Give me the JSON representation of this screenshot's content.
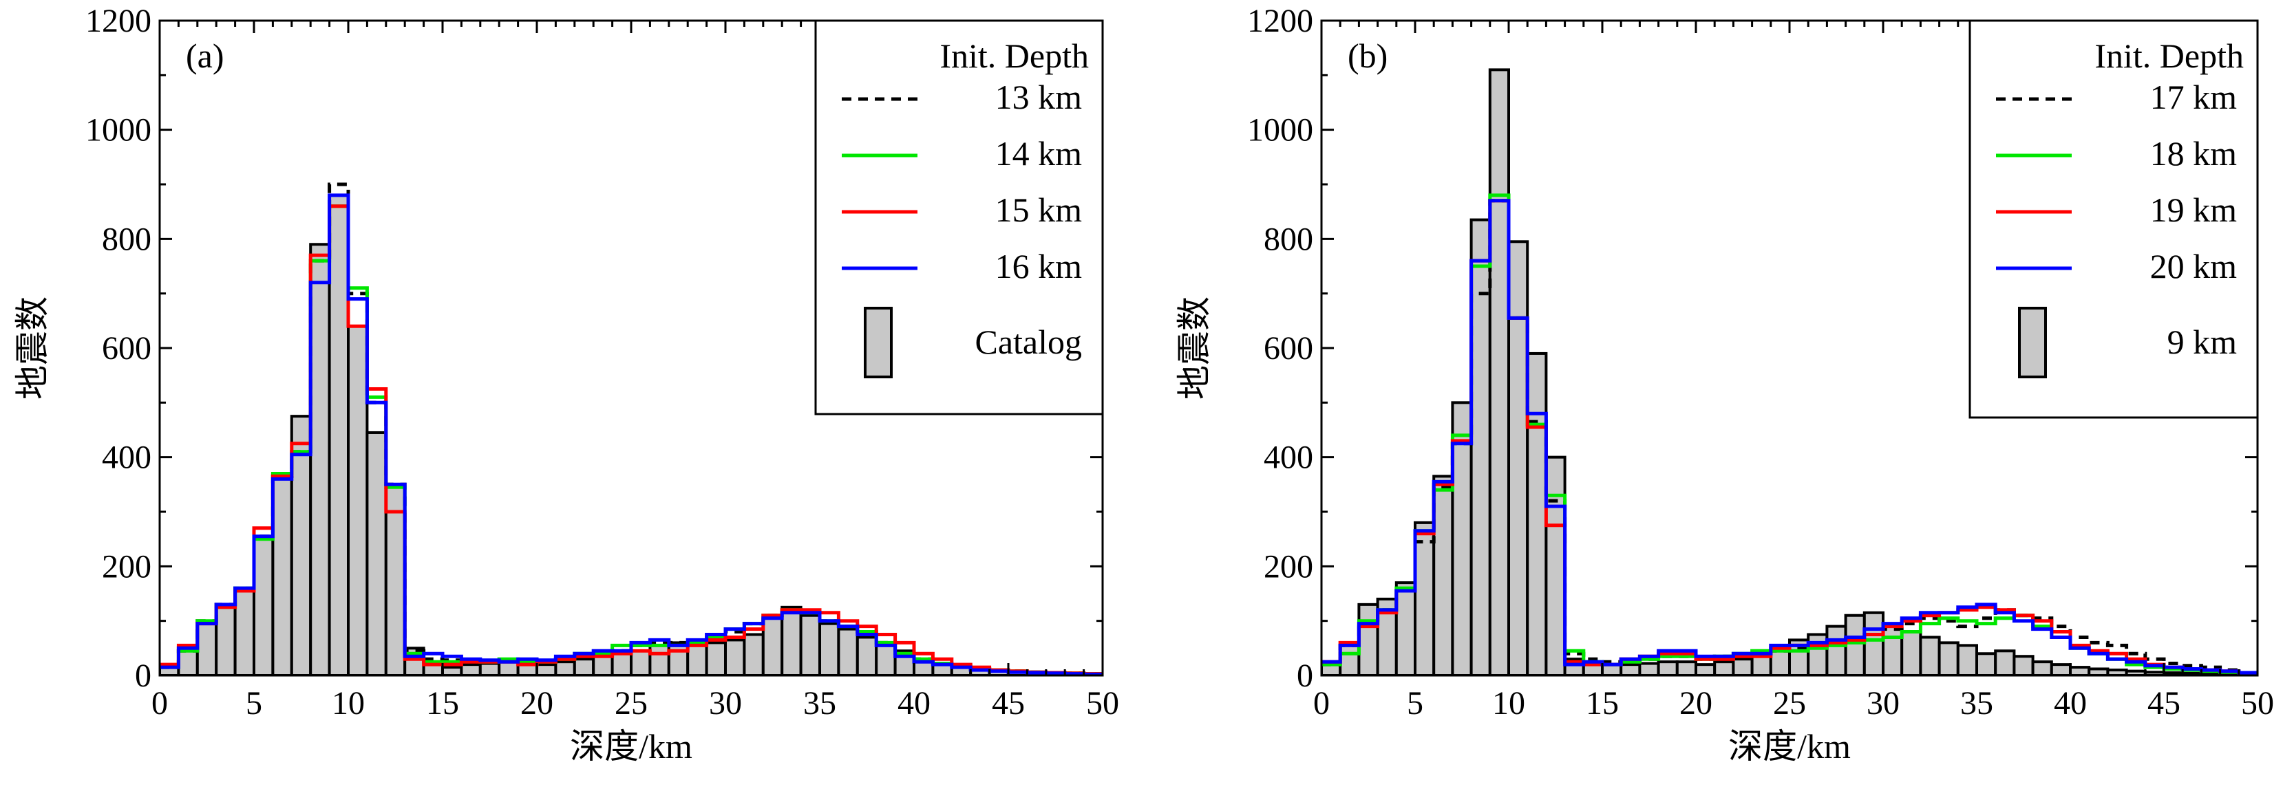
{
  "chart_data": [
    {
      "type": "bar",
      "panel_label": "(a)",
      "xlabel": "深度/km",
      "ylabel": "地震数",
      "xlim": [
        0,
        50
      ],
      "ylim": [
        0,
        1200
      ],
      "xticks": [
        0,
        5,
        10,
        15,
        20,
        25,
        30,
        35,
        40,
        45,
        50
      ],
      "yticks": [
        0,
        200,
        400,
        600,
        800,
        1000,
        1200
      ],
      "bin_edges": [
        0,
        1,
        2,
        3,
        4,
        5,
        6,
        7,
        8,
        9,
        10,
        11,
        12,
        13,
        14,
        15,
        16,
        17,
        18,
        19,
        20,
        21,
        22,
        23,
        24,
        25,
        26,
        27,
        28,
        29,
        30,
        31,
        32,
        33,
        34,
        35,
        36,
        37,
        38,
        39,
        40,
        41,
        42,
        43,
        44,
        45,
        46,
        47,
        48,
        49,
        50
      ],
      "legend": {
        "title": "Init. Depth",
        "placement": "top-right"
      },
      "bars": {
        "name": "Catalog",
        "fill": "#c8c8c8",
        "values": [
          15,
          45,
          95,
          130,
          160,
          250,
          360,
          475,
          790,
          880,
          640,
          445,
          350,
          50,
          20,
          15,
          20,
          22,
          25,
          22,
          20,
          25,
          30,
          35,
          40,
          45,
          55,
          60,
          55,
          60,
          65,
          75,
          110,
          125,
          110,
          95,
          85,
          70,
          55,
          45,
          30,
          20,
          15,
          10,
          8,
          6,
          5,
          4,
          3,
          2
        ]
      },
      "series": [
        {
          "name": "13 km",
          "color": "#000000",
          "dash": true,
          "values": [
            15,
            45,
            100,
            130,
            160,
            255,
            365,
            410,
            760,
            900,
            700,
            500,
            350,
            45,
            30,
            28,
            25,
            25,
            28,
            25,
            25,
            30,
            35,
            40,
            45,
            55,
            60,
            60,
            60,
            70,
            80,
            95,
            110,
            120,
            115,
            100,
            90,
            80,
            60,
            40,
            30,
            22,
            18,
            12,
            10,
            8,
            6,
            5,
            4,
            3
          ]
        },
        {
          "name": "14 km",
          "color": "#00e600",
          "dash": false,
          "values": [
            15,
            45,
            100,
            125,
            160,
            250,
            370,
            410,
            760,
            860,
            710,
            510,
            345,
            40,
            25,
            25,
            28,
            25,
            30,
            25,
            25,
            30,
            40,
            40,
            55,
            55,
            55,
            55,
            60,
            70,
            85,
            95,
            110,
            120,
            115,
            100,
            90,
            80,
            60,
            40,
            30,
            22,
            18,
            12,
            10,
            8,
            6,
            5,
            4,
            3
          ]
        },
        {
          "name": "15 km",
          "color": "#ff0000",
          "dash": false,
          "values": [
            20,
            55,
            95,
            125,
            155,
            270,
            365,
            425,
            770,
            860,
            640,
            525,
            300,
            30,
            20,
            20,
            25,
            25,
            25,
            20,
            25,
            30,
            35,
            35,
            40,
            45,
            40,
            45,
            55,
            65,
            70,
            85,
            110,
            120,
            120,
            115,
            100,
            90,
            75,
            60,
            40,
            30,
            20,
            15,
            10,
            8,
            6,
            5,
            4,
            3
          ]
        },
        {
          "name": "16 km",
          "color": "#0000ff",
          "dash": false,
          "values": [
            15,
            50,
            95,
            130,
            160,
            255,
            360,
            405,
            720,
            880,
            690,
            500,
            350,
            35,
            40,
            35,
            30,
            28,
            25,
            30,
            28,
            35,
            40,
            45,
            45,
            60,
            65,
            55,
            65,
            75,
            85,
            95,
            105,
            115,
            115,
            100,
            90,
            75,
            55,
            35,
            25,
            20,
            15,
            10,
            8,
            6,
            5,
            4,
            3,
            2
          ]
        }
      ]
    },
    {
      "type": "bar",
      "panel_label": "(b)",
      "xlabel": "深度/km",
      "ylabel": "地震数",
      "xlim": [
        0,
        50
      ],
      "ylim": [
        0,
        1200
      ],
      "xticks": [
        0,
        5,
        10,
        15,
        20,
        25,
        30,
        35,
        40,
        45,
        50
      ],
      "yticks": [
        0,
        200,
        400,
        600,
        800,
        1000,
        1200
      ],
      "bin_edges": [
        0,
        1,
        2,
        3,
        4,
        5,
        6,
        7,
        8,
        9,
        10,
        11,
        12,
        13,
        14,
        15,
        16,
        17,
        18,
        19,
        20,
        21,
        22,
        23,
        24,
        25,
        26,
        27,
        28,
        29,
        30,
        31,
        32,
        33,
        34,
        35,
        36,
        37,
        38,
        39,
        40,
        41,
        42,
        43,
        44,
        45,
        46,
        47,
        48,
        49,
        50
      ],
      "legend": {
        "title": "Init. Depth",
        "placement": "top-right"
      },
      "bars": {
        "name": "9 km",
        "fill": "#c8c8c8",
        "values": [
          20,
          60,
          130,
          140,
          170,
          280,
          365,
          500,
          835,
          1110,
          795,
          590,
          400,
          30,
          25,
          20,
          20,
          22,
          25,
          25,
          20,
          25,
          30,
          35,
          45,
          65,
          75,
          90,
          110,
          115,
          95,
          80,
          70,
          60,
          55,
          40,
          45,
          35,
          25,
          20,
          15,
          12,
          10,
          8,
          6,
          5,
          4,
          3,
          2,
          2
        ]
      },
      "series": [
        {
          "name": "17 km",
          "color": "#000000",
          "dash": true,
          "values": [
            20,
            55,
            95,
            120,
            155,
            245,
            345,
            425,
            700,
            870,
            655,
            465,
            320,
            40,
            30,
            25,
            25,
            30,
            35,
            35,
            30,
            35,
            35,
            40,
            45,
            50,
            55,
            60,
            70,
            75,
            85,
            95,
            105,
            100,
            90,
            105,
            120,
            110,
            105,
            90,
            70,
            60,
            55,
            40,
            30,
            22,
            18,
            15,
            10,
            5
          ]
        },
        {
          "name": "18 km",
          "color": "#00e600",
          "dash": false,
          "values": [
            20,
            40,
            100,
            120,
            160,
            265,
            340,
            440,
            750,
            880,
            655,
            460,
            330,
            45,
            25,
            20,
            25,
            30,
            35,
            35,
            30,
            35,
            40,
            45,
            45,
            45,
            50,
            55,
            60,
            65,
            70,
            80,
            95,
            105,
            100,
            95,
            105,
            110,
            90,
            70,
            50,
            40,
            30,
            20,
            15,
            12,
            10,
            8,
            6,
            4
          ]
        },
        {
          "name": "19 km",
          "color": "#ff0000",
          "dash": false,
          "values": [
            25,
            60,
            90,
            115,
            155,
            260,
            350,
            430,
            760,
            870,
            655,
            455,
            275,
            25,
            20,
            20,
            30,
            35,
            40,
            40,
            30,
            30,
            35,
            35,
            50,
            55,
            55,
            60,
            65,
            75,
            90,
            100,
            110,
            115,
            120,
            125,
            120,
            110,
            100,
            80,
            55,
            45,
            40,
            30,
            20,
            15,
            12,
            10,
            8,
            5
          ]
        },
        {
          "name": "20 km",
          "color": "#0000ff",
          "dash": false,
          "values": [
            25,
            55,
            95,
            120,
            155,
            265,
            355,
            425,
            760,
            870,
            655,
            480,
            310,
            20,
            25,
            20,
            30,
            35,
            45,
            45,
            35,
            35,
            40,
            40,
            55,
            55,
            60,
            65,
            70,
            85,
            95,
            105,
            115,
            115,
            125,
            130,
            115,
            100,
            85,
            70,
            50,
            40,
            30,
            25,
            18,
            15,
            12,
            10,
            8,
            5
          ]
        }
      ]
    }
  ]
}
